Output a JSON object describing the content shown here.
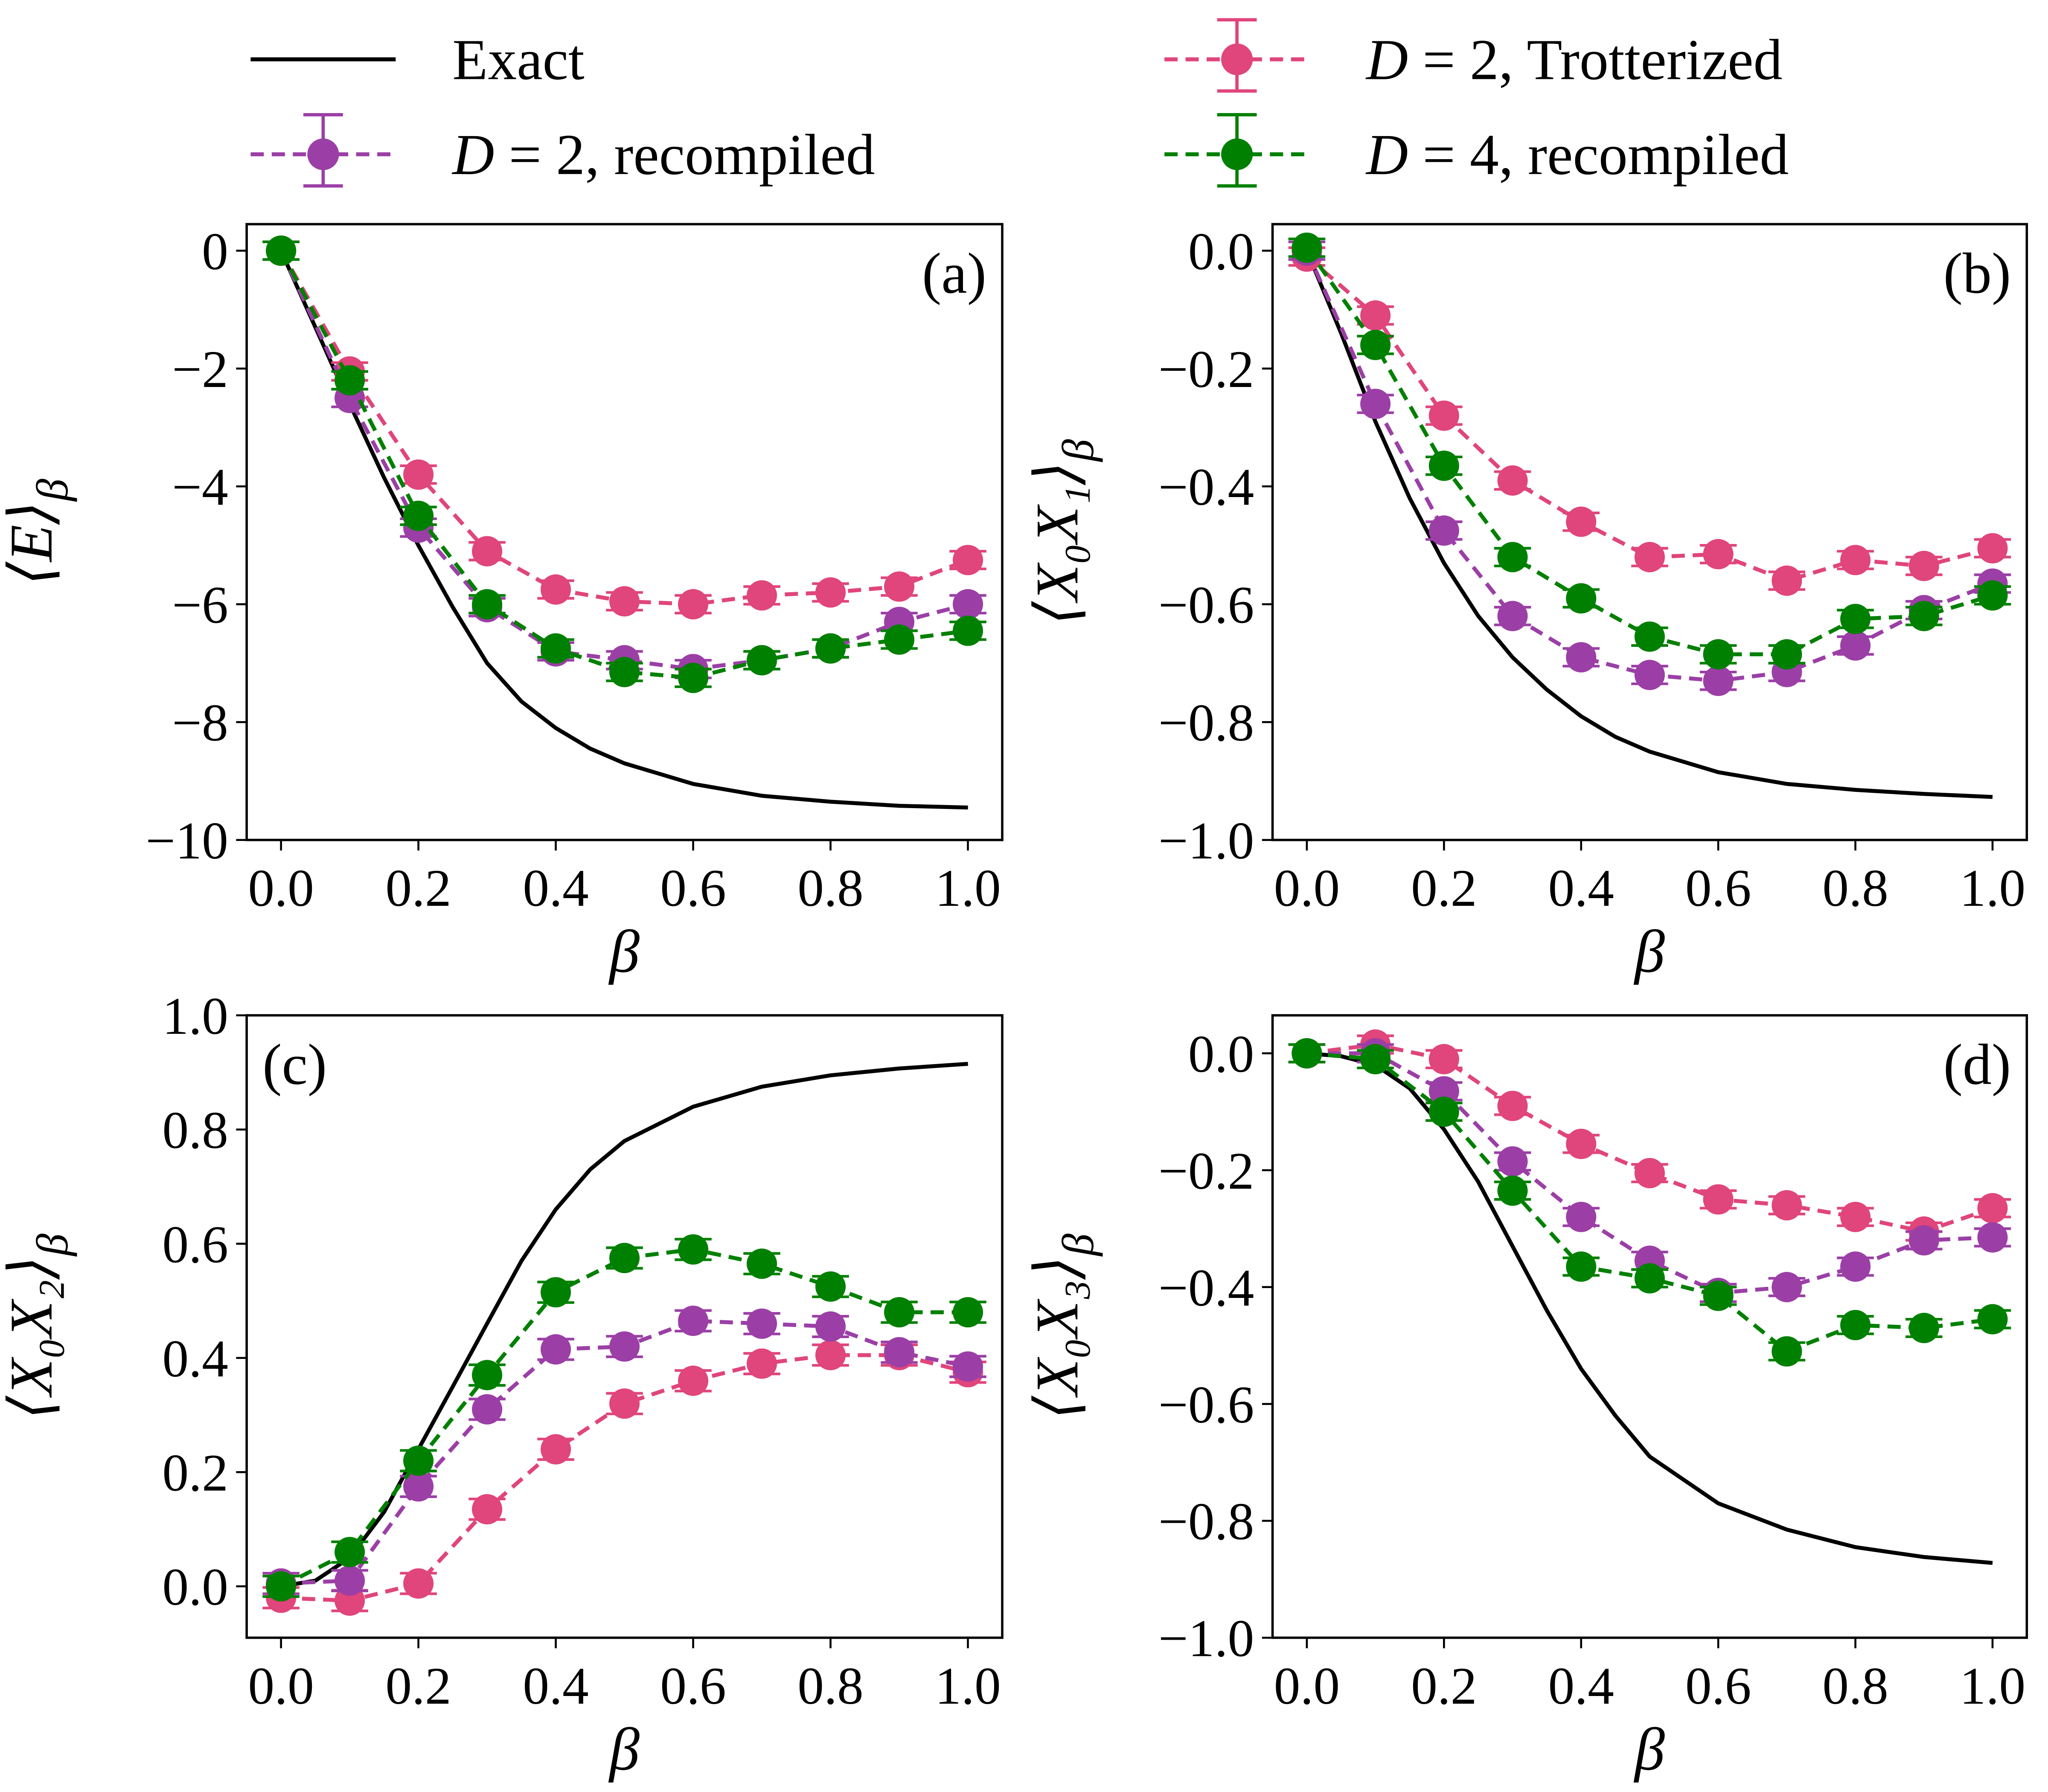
{
  "colors": {
    "exact": "#000000",
    "d2_trotter": "#e0457b",
    "d2_recompiled": "#9b3fa6",
    "d4_recompiled": "#008000"
  },
  "legend": [
    {
      "key": "exact",
      "label": "Exact",
      "style": "line"
    },
    {
      "key": "d2_recompiled",
      "label": "D = 2, recompiled",
      "style": "errorbar"
    },
    {
      "key": "d2_trotter",
      "label": "D = 2, Trotterized",
      "style": "errorbar"
    },
    {
      "key": "d4_recompiled",
      "label": "D = 4, recompiled",
      "style": "errorbar"
    }
  ],
  "chart_data": [
    {
      "type": "line",
      "panel_label": "(a)",
      "panel_label_pos": "top-right",
      "xlabel": "β",
      "ylabel_main": "⟨E⟩",
      "ylabel_sub": "β",
      "xlim": [
        -0.05,
        1.05
      ],
      "ylim": [
        -10,
        0.45
      ],
      "xticks": [
        0,
        0.2,
        0.4,
        0.6,
        0.8,
        1.0
      ],
      "xtick_labels": [
        "0.0",
        "0.2",
        "0.4",
        "0.6",
        "0.8",
        "1.0"
      ],
      "yticks": [
        0,
        -2,
        -4,
        -6,
        -8,
        -10
      ],
      "ytick_labels": [
        "0",
        "−2",
        "−4",
        "−6",
        "−8",
        "−10"
      ],
      "x": [
        0,
        0.1,
        0.2,
        0.3,
        0.4,
        0.5,
        0.6,
        0.7,
        0.8,
        0.9,
        1.0
      ],
      "exact": {
        "x": [
          0,
          0.05,
          0.1,
          0.15,
          0.2,
          0.25,
          0.3,
          0.35,
          0.4,
          0.45,
          0.5,
          0.6,
          0.7,
          0.8,
          0.9,
          1.0
        ],
        "y": [
          0,
          -1.3,
          -2.6,
          -3.85,
          -5.0,
          -6.05,
          -7.0,
          -7.65,
          -8.1,
          -8.45,
          -8.7,
          -9.05,
          -9.25,
          -9.35,
          -9.42,
          -9.45
        ]
      },
      "series": [
        {
          "key": "d2_trotter",
          "yerr": 0.15,
          "values": [
            0,
            -2.05,
            -3.8,
            -5.1,
            -5.75,
            -5.95,
            -6.0,
            -5.85,
            -5.8,
            -5.7,
            -5.25
          ]
        },
        {
          "key": "d2_recompiled",
          "yerr": 0.15,
          "values": [
            0,
            -2.5,
            -4.7,
            -6.05,
            -6.8,
            -6.95,
            -7.1,
            -6.95,
            -6.75,
            -6.3,
            -6.0
          ]
        },
        {
          "key": "d4_recompiled",
          "yerr": 0.15,
          "values": [
            0,
            -2.2,
            -4.5,
            -6.0,
            -6.75,
            -7.15,
            -7.25,
            -6.95,
            -6.75,
            -6.6,
            -6.45
          ]
        }
      ]
    },
    {
      "type": "line",
      "panel_label": "(b)",
      "panel_label_pos": "top-right",
      "xlabel": "β",
      "ylabel_main": "⟨X₀X₁⟩",
      "ylabel_sub": "β",
      "xlim": [
        -0.05,
        1.05
      ],
      "ylim": [
        -1.0,
        0.045
      ],
      "xticks": [
        0,
        0.2,
        0.4,
        0.6,
        0.8,
        1.0
      ],
      "xtick_labels": [
        "0.0",
        "0.2",
        "0.4",
        "0.6",
        "0.8",
        "1.0"
      ],
      "yticks": [
        0,
        -0.2,
        -0.4,
        -0.6,
        -0.8,
        -1.0
      ],
      "ytick_labels": [
        "0.0",
        "−0.2",
        "−0.4",
        "−0.6",
        "−0.8",
        "−1.0"
      ],
      "x": [
        0,
        0.1,
        0.2,
        0.3,
        0.4,
        0.5,
        0.6,
        0.7,
        0.8,
        0.9,
        1.0
      ],
      "exact": {
        "x": [
          0,
          0.05,
          0.1,
          0.15,
          0.2,
          0.25,
          0.3,
          0.35,
          0.4,
          0.45,
          0.5,
          0.6,
          0.7,
          0.8,
          0.9,
          1.0
        ],
        "y": [
          0,
          -0.14,
          -0.29,
          -0.42,
          -0.53,
          -0.62,
          -0.69,
          -0.745,
          -0.79,
          -0.825,
          -0.85,
          -0.885,
          -0.905,
          -0.915,
          -0.922,
          -0.927
        ]
      },
      "series": [
        {
          "key": "d2_trotter",
          "yerr": 0.015,
          "values": [
            -0.01,
            -0.11,
            -0.28,
            -0.39,
            -0.46,
            -0.52,
            -0.515,
            -0.56,
            -0.525,
            -0.535,
            -0.505
          ]
        },
        {
          "key": "d2_recompiled",
          "yerr": 0.015,
          "values": [
            0,
            -0.26,
            -0.475,
            -0.62,
            -0.69,
            -0.72,
            -0.73,
            -0.715,
            -0.67,
            -0.61,
            -0.565
          ]
        },
        {
          "key": "d4_recompiled",
          "yerr": 0.015,
          "values": [
            0.005,
            -0.16,
            -0.365,
            -0.52,
            -0.59,
            -0.655,
            -0.685,
            -0.685,
            -0.625,
            -0.62,
            -0.585
          ]
        }
      ]
    },
    {
      "type": "line",
      "panel_label": "(c)",
      "panel_label_pos": "top-left",
      "xlabel": "β",
      "ylabel_main": "⟨X₀X₂⟩",
      "ylabel_sub": "β",
      "xlim": [
        -0.05,
        1.05
      ],
      "ylim": [
        -0.09,
        1.0
      ],
      "xticks": [
        0,
        0.2,
        0.4,
        0.6,
        0.8,
        1.0
      ],
      "xtick_labels": [
        "0.0",
        "0.2",
        "0.4",
        "0.6",
        "0.8",
        "1.0"
      ],
      "yticks": [
        0,
        0.2,
        0.4,
        0.6,
        0.8,
        1.0
      ],
      "ytick_labels": [
        "0.0",
        "0.2",
        "0.4",
        "0.6",
        "0.8",
        "1.0"
      ],
      "x": [
        0,
        0.1,
        0.2,
        0.3,
        0.4,
        0.5,
        0.6,
        0.7,
        0.8,
        0.9,
        1.0
      ],
      "exact": {
        "x": [
          0,
          0.05,
          0.1,
          0.15,
          0.2,
          0.25,
          0.3,
          0.35,
          0.4,
          0.45,
          0.5,
          0.6,
          0.7,
          0.8,
          0.9,
          1.0
        ],
        "y": [
          0,
          0.01,
          0.05,
          0.13,
          0.24,
          0.35,
          0.46,
          0.57,
          0.66,
          0.73,
          0.78,
          0.84,
          0.875,
          0.895,
          0.907,
          0.915
        ]
      },
      "series": [
        {
          "key": "d2_trotter",
          "yerr": 0.018,
          "values": [
            -0.02,
            -0.025,
            0.005,
            0.135,
            0.24,
            0.32,
            0.36,
            0.39,
            0.405,
            0.405,
            0.375
          ]
        },
        {
          "key": "d2_recompiled",
          "yerr": 0.018,
          "values": [
            0.005,
            0.01,
            0.175,
            0.31,
            0.415,
            0.42,
            0.465,
            0.46,
            0.455,
            0.41,
            0.385
          ]
        },
        {
          "key": "d4_recompiled",
          "yerr": 0.018,
          "values": [
            0,
            0.06,
            0.22,
            0.37,
            0.515,
            0.575,
            0.59,
            0.565,
            0.525,
            0.48,
            0.48
          ]
        }
      ]
    },
    {
      "type": "line",
      "panel_label": "(d)",
      "panel_label_pos": "top-right",
      "xlabel": "β",
      "ylabel_main": "⟨X₀X₃⟩",
      "ylabel_sub": "β",
      "xlim": [
        -0.05,
        1.05
      ],
      "ylim": [
        -1.0,
        0.065
      ],
      "xticks": [
        0,
        0.2,
        0.4,
        0.6,
        0.8,
        1.0
      ],
      "xtick_labels": [
        "0.0",
        "0.2",
        "0.4",
        "0.6",
        "0.8",
        "1.0"
      ],
      "yticks": [
        0,
        -0.2,
        -0.4,
        -0.6,
        -0.8,
        -1.0
      ],
      "ytick_labels": [
        "0.0",
        "−0.2",
        "−0.4",
        "−0.6",
        "−0.8",
        "−1.0"
      ],
      "x": [
        0,
        0.1,
        0.2,
        0.3,
        0.4,
        0.5,
        0.6,
        0.7,
        0.8,
        0.9,
        1.0
      ],
      "exact": {
        "x": [
          0,
          0.05,
          0.1,
          0.15,
          0.2,
          0.25,
          0.3,
          0.35,
          0.4,
          0.45,
          0.5,
          0.6,
          0.7,
          0.8,
          0.9,
          1.0
        ],
        "y": [
          0,
          -0.005,
          -0.02,
          -0.06,
          -0.13,
          -0.22,
          -0.33,
          -0.44,
          -0.54,
          -0.62,
          -0.69,
          -0.77,
          -0.815,
          -0.845,
          -0.862,
          -0.872
        ]
      },
      "series": [
        {
          "key": "d2_trotter",
          "yerr": 0.015,
          "values": [
            0,
            0.015,
            -0.01,
            -0.09,
            -0.155,
            -0.205,
            -0.25,
            -0.26,
            -0.28,
            -0.305,
            -0.265
          ]
        },
        {
          "key": "d2_recompiled",
          "yerr": 0.015,
          "values": [
            0,
            0,
            -0.065,
            -0.185,
            -0.28,
            -0.355,
            -0.41,
            -0.4,
            -0.365,
            -0.32,
            -0.315
          ]
        },
        {
          "key": "d4_recompiled",
          "yerr": 0.015,
          "values": [
            0,
            -0.01,
            -0.1,
            -0.235,
            -0.365,
            -0.385,
            -0.415,
            -0.51,
            -0.465,
            -0.47,
            -0.455
          ]
        }
      ]
    }
  ]
}
